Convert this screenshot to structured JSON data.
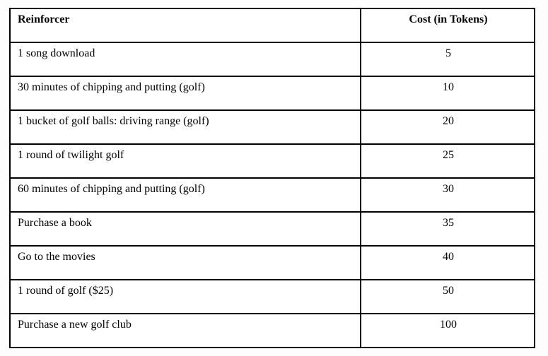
{
  "page": {
    "background_color": "#fdfdfd",
    "table_background_color": "#ffffff",
    "border_color": "#000000"
  },
  "table": {
    "header": {
      "reinforcer": "Reinforcer",
      "cost": "Cost (in Tokens)"
    },
    "rows": [
      {
        "reinforcer": "1 song download",
        "cost": "5"
      },
      {
        "reinforcer": "30 minutes of chipping and putting (golf)",
        "cost": "10"
      },
      {
        "reinforcer": "1 bucket of golf balls: driving range (golf)",
        "cost": "20"
      },
      {
        "reinforcer": "1 round of twilight golf",
        "cost": "25"
      },
      {
        "reinforcer": "60 minutes of chipping and putting (golf)",
        "cost": "30"
      },
      {
        "reinforcer": "Purchase a book",
        "cost": "35"
      },
      {
        "reinforcer": "Go to the movies",
        "cost": "40"
      },
      {
        "reinforcer": "1 round of golf ($25)",
        "cost": "50"
      },
      {
        "reinforcer": "Purchase a new golf club",
        "cost": "100"
      }
    ]
  }
}
